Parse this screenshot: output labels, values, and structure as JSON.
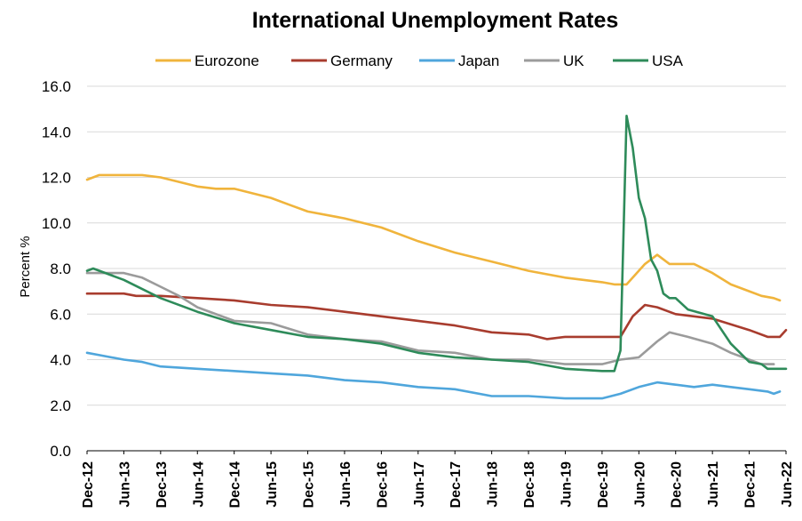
{
  "chart_data": {
    "type": "line",
    "title": "International Unemployment Rates",
    "ylabel": "Percent %",
    "xlabel": "",
    "ylim": [
      0,
      16
    ],
    "yticks": [
      "0.0",
      "2.0",
      "4.0",
      "6.0",
      "8.0",
      "10.0",
      "12.0",
      "14.0",
      "16.0"
    ],
    "grid": "horizontal",
    "legend_position": "top",
    "x_start": "Dec-12",
    "x_end": "Jun-22",
    "x_tick_labels": [
      "Dec-12",
      "Jun-13",
      "Dec-13",
      "Jun-14",
      "Dec-14",
      "Jun-15",
      "Dec-15",
      "Jun-16",
      "Dec-16",
      "Jun-17",
      "Dec-17",
      "Jun-18",
      "Dec-18",
      "Jun-19",
      "Dec-19",
      "Jun-20",
      "Dec-20",
      "Jun-21",
      "Dec-21",
      "Jun-22"
    ],
    "series": [
      {
        "name": "Eurozone",
        "color": "#F0B43C",
        "points": [
          [
            "Dec-12",
            11.9
          ],
          [
            "Feb-13",
            12.1
          ],
          [
            "Jun-13",
            12.1
          ],
          [
            "Sep-13",
            12.1
          ],
          [
            "Dec-13",
            12.0
          ],
          [
            "Mar-14",
            11.8
          ],
          [
            "Jun-14",
            11.6
          ],
          [
            "Sep-14",
            11.5
          ],
          [
            "Dec-14",
            11.5
          ],
          [
            "Jun-15",
            11.1
          ],
          [
            "Sep-15",
            10.8
          ],
          [
            "Dec-15",
            10.5
          ],
          [
            "Jun-16",
            10.2
          ],
          [
            "Dec-16",
            9.8
          ],
          [
            "Jun-17",
            9.2
          ],
          [
            "Dec-17",
            8.7
          ],
          [
            "Jun-18",
            8.3
          ],
          [
            "Dec-18",
            7.9
          ],
          [
            "Jun-19",
            7.6
          ],
          [
            "Dec-19",
            7.4
          ],
          [
            "Feb-20",
            7.3
          ],
          [
            "Apr-20",
            7.3
          ],
          [
            "Jul-20",
            8.2
          ],
          [
            "Sep-20",
            8.6
          ],
          [
            "Nov-20",
            8.2
          ],
          [
            "Dec-20",
            8.2
          ],
          [
            "Mar-21",
            8.2
          ],
          [
            "Jun-21",
            7.8
          ],
          [
            "Sep-21",
            7.3
          ],
          [
            "Dec-21",
            7.0
          ],
          [
            "Feb-22",
            6.8
          ],
          [
            "Apr-22",
            6.7
          ],
          [
            "May-22",
            6.6
          ]
        ]
      },
      {
        "name": "Germany",
        "color": "#A83C2E",
        "points": [
          [
            "Dec-12",
            6.9
          ],
          [
            "Jun-13",
            6.9
          ],
          [
            "Aug-13",
            6.8
          ],
          [
            "Dec-13",
            6.8
          ],
          [
            "Jun-14",
            6.7
          ],
          [
            "Dec-14",
            6.6
          ],
          [
            "Jun-15",
            6.4
          ],
          [
            "Dec-15",
            6.3
          ],
          [
            "Jun-16",
            6.1
          ],
          [
            "Dec-16",
            5.9
          ],
          [
            "Jun-17",
            5.7
          ],
          [
            "Dec-17",
            5.5
          ],
          [
            "Jun-18",
            5.2
          ],
          [
            "Dec-18",
            5.1
          ],
          [
            "Mar-19",
            4.9
          ],
          [
            "Jun-19",
            5.0
          ],
          [
            "Dec-19",
            5.0
          ],
          [
            "Mar-20",
            5.0
          ],
          [
            "May-20",
            5.9
          ],
          [
            "Jul-20",
            6.4
          ],
          [
            "Sep-20",
            6.3
          ],
          [
            "Dec-20",
            6.0
          ],
          [
            "Jun-21",
            5.8
          ],
          [
            "Dec-21",
            5.3
          ],
          [
            "Mar-22",
            5.0
          ],
          [
            "May-22",
            5.0
          ],
          [
            "Jun-22",
            5.3
          ]
        ]
      },
      {
        "name": "Japan",
        "color": "#4FA6DC",
        "points": [
          [
            "Dec-12",
            4.3
          ],
          [
            "Feb-13",
            4.2
          ],
          [
            "Jun-13",
            4.0
          ],
          [
            "Sep-13",
            3.9
          ],
          [
            "Dec-13",
            3.7
          ],
          [
            "Jun-14",
            3.6
          ],
          [
            "Dec-14",
            3.5
          ],
          [
            "Jun-15",
            3.4
          ],
          [
            "Dec-15",
            3.3
          ],
          [
            "Jun-16",
            3.1
          ],
          [
            "Dec-16",
            3.0
          ],
          [
            "Jun-17",
            2.8
          ],
          [
            "Dec-17",
            2.7
          ],
          [
            "Jun-18",
            2.4
          ],
          [
            "Dec-18",
            2.4
          ],
          [
            "Jun-19",
            2.3
          ],
          [
            "Dec-19",
            2.3
          ],
          [
            "Mar-20",
            2.5
          ],
          [
            "Jun-20",
            2.8
          ],
          [
            "Sep-20",
            3.0
          ],
          [
            "Dec-20",
            2.9
          ],
          [
            "Mar-21",
            2.8
          ],
          [
            "Jun-21",
            2.9
          ],
          [
            "Sep-21",
            2.8
          ],
          [
            "Dec-21",
            2.7
          ],
          [
            "Mar-22",
            2.6
          ],
          [
            "Apr-22",
            2.5
          ],
          [
            "May-22",
            2.6
          ]
        ]
      },
      {
        "name": "UK",
        "color": "#9B9B9B",
        "points": [
          [
            "Dec-12",
            7.8
          ],
          [
            "Jun-13",
            7.8
          ],
          [
            "Sep-13",
            7.6
          ],
          [
            "Dec-13",
            7.2
          ],
          [
            "Mar-14",
            6.8
          ],
          [
            "Jun-14",
            6.3
          ],
          [
            "Dec-14",
            5.7
          ],
          [
            "Jun-15",
            5.6
          ],
          [
            "Dec-15",
            5.1
          ],
          [
            "Jun-16",
            4.9
          ],
          [
            "Dec-16",
            4.8
          ],
          [
            "Jun-17",
            4.4
          ],
          [
            "Dec-17",
            4.3
          ],
          [
            "Jun-18",
            4.0
          ],
          [
            "Dec-18",
            4.0
          ],
          [
            "Jun-19",
            3.8
          ],
          [
            "Dec-19",
            3.8
          ],
          [
            "Mar-20",
            4.0
          ],
          [
            "Jun-20",
            4.1
          ],
          [
            "Sep-20",
            4.8
          ],
          [
            "Nov-20",
            5.2
          ],
          [
            "Feb-21",
            5.0
          ],
          [
            "Jun-21",
            4.7
          ],
          [
            "Sep-21",
            4.3
          ],
          [
            "Dec-21",
            4.0
          ],
          [
            "Feb-22",
            3.8
          ],
          [
            "Apr-22",
            3.8
          ]
        ]
      },
      {
        "name": "USA",
        "color": "#2E8B5A",
        "points": [
          [
            "Dec-12",
            7.9
          ],
          [
            "Jan-13",
            8.0
          ],
          [
            "Jun-13",
            7.5
          ],
          [
            "Dec-13",
            6.7
          ],
          [
            "Jun-14",
            6.1
          ],
          [
            "Dec-14",
            5.6
          ],
          [
            "Jun-15",
            5.3
          ],
          [
            "Dec-15",
            5.0
          ],
          [
            "Jun-16",
            4.9
          ],
          [
            "Dec-16",
            4.7
          ],
          [
            "Jun-17",
            4.3
          ],
          [
            "Dec-17",
            4.1
          ],
          [
            "Jun-18",
            4.0
          ],
          [
            "Dec-18",
            3.9
          ],
          [
            "Jun-19",
            3.6
          ],
          [
            "Dec-19",
            3.5
          ],
          [
            "Feb-20",
            3.5
          ],
          [
            "Mar-20",
            4.4
          ],
          [
            "Apr-20",
            14.7
          ],
          [
            "May-20",
            13.3
          ],
          [
            "Jun-20",
            11.1
          ],
          [
            "Jul-20",
            10.2
          ],
          [
            "Aug-20",
            8.4
          ],
          [
            "Sep-20",
            7.9
          ],
          [
            "Oct-20",
            6.9
          ],
          [
            "Nov-20",
            6.7
          ],
          [
            "Dec-20",
            6.7
          ],
          [
            "Feb-21",
            6.2
          ],
          [
            "Jun-21",
            5.9
          ],
          [
            "Sep-21",
            4.7
          ],
          [
            "Dec-21",
            3.9
          ],
          [
            "Feb-22",
            3.8
          ],
          [
            "Mar-22",
            3.6
          ],
          [
            "Jun-22",
            3.6
          ]
        ]
      }
    ]
  }
}
